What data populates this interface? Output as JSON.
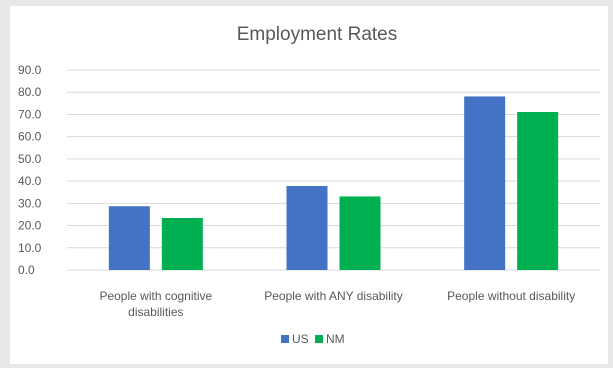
{
  "chart_data": {
    "type": "bar",
    "title": "Employment Rates",
    "categories": [
      [
        "People with cognitive",
        "disabilities"
      ],
      [
        "People with ANY disability"
      ],
      [
        "People without disability"
      ]
    ],
    "series": [
      {
        "name": "US",
        "color": "#4472c4",
        "values": [
          28.7,
          37.8,
          78.1
        ]
      },
      {
        "name": "NM",
        "color": "#00b050",
        "values": [
          23.4,
          33.1,
          71.1
        ]
      }
    ],
    "ylim": [
      0,
      90
    ],
    "yticks": [
      "0.0",
      "10.0",
      "20.0",
      "30.0",
      "40.0",
      "50.0",
      "60.0",
      "70.0",
      "80.0",
      "90.0"
    ],
    "grid": true,
    "legend": "bottom-center",
    "xlabel": "",
    "ylabel": ""
  }
}
